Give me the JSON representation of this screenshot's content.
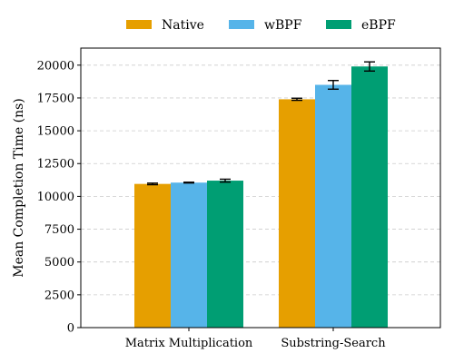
{
  "chart_data": {
    "type": "bar",
    "title": "",
    "xlabel": "",
    "ylabel": "Mean Completion Time (ns)",
    "categories": [
      "Matrix Multiplication",
      "Substring-Search"
    ],
    "series": [
      {
        "name": "Native",
        "color": "#E69F00",
        "values": [
          10950,
          17400
        ],
        "errors": [
          60,
          80
        ]
      },
      {
        "name": "wBPF",
        "color": "#56B4E9",
        "values": [
          11050,
          18500
        ],
        "errors": [
          30,
          330
        ]
      },
      {
        "name": "eBPF",
        "color": "#009E73",
        "values": [
          11200,
          19900
        ],
        "errors": [
          110,
          350
        ]
      }
    ],
    "ylim": [
      0,
      21300
    ],
    "yticks": [
      0,
      2500,
      5000,
      7500,
      10000,
      12500,
      15000,
      17500,
      20000
    ],
    "grid": "y, dashed",
    "legend": "top-center, outside plot, horizontal"
  }
}
